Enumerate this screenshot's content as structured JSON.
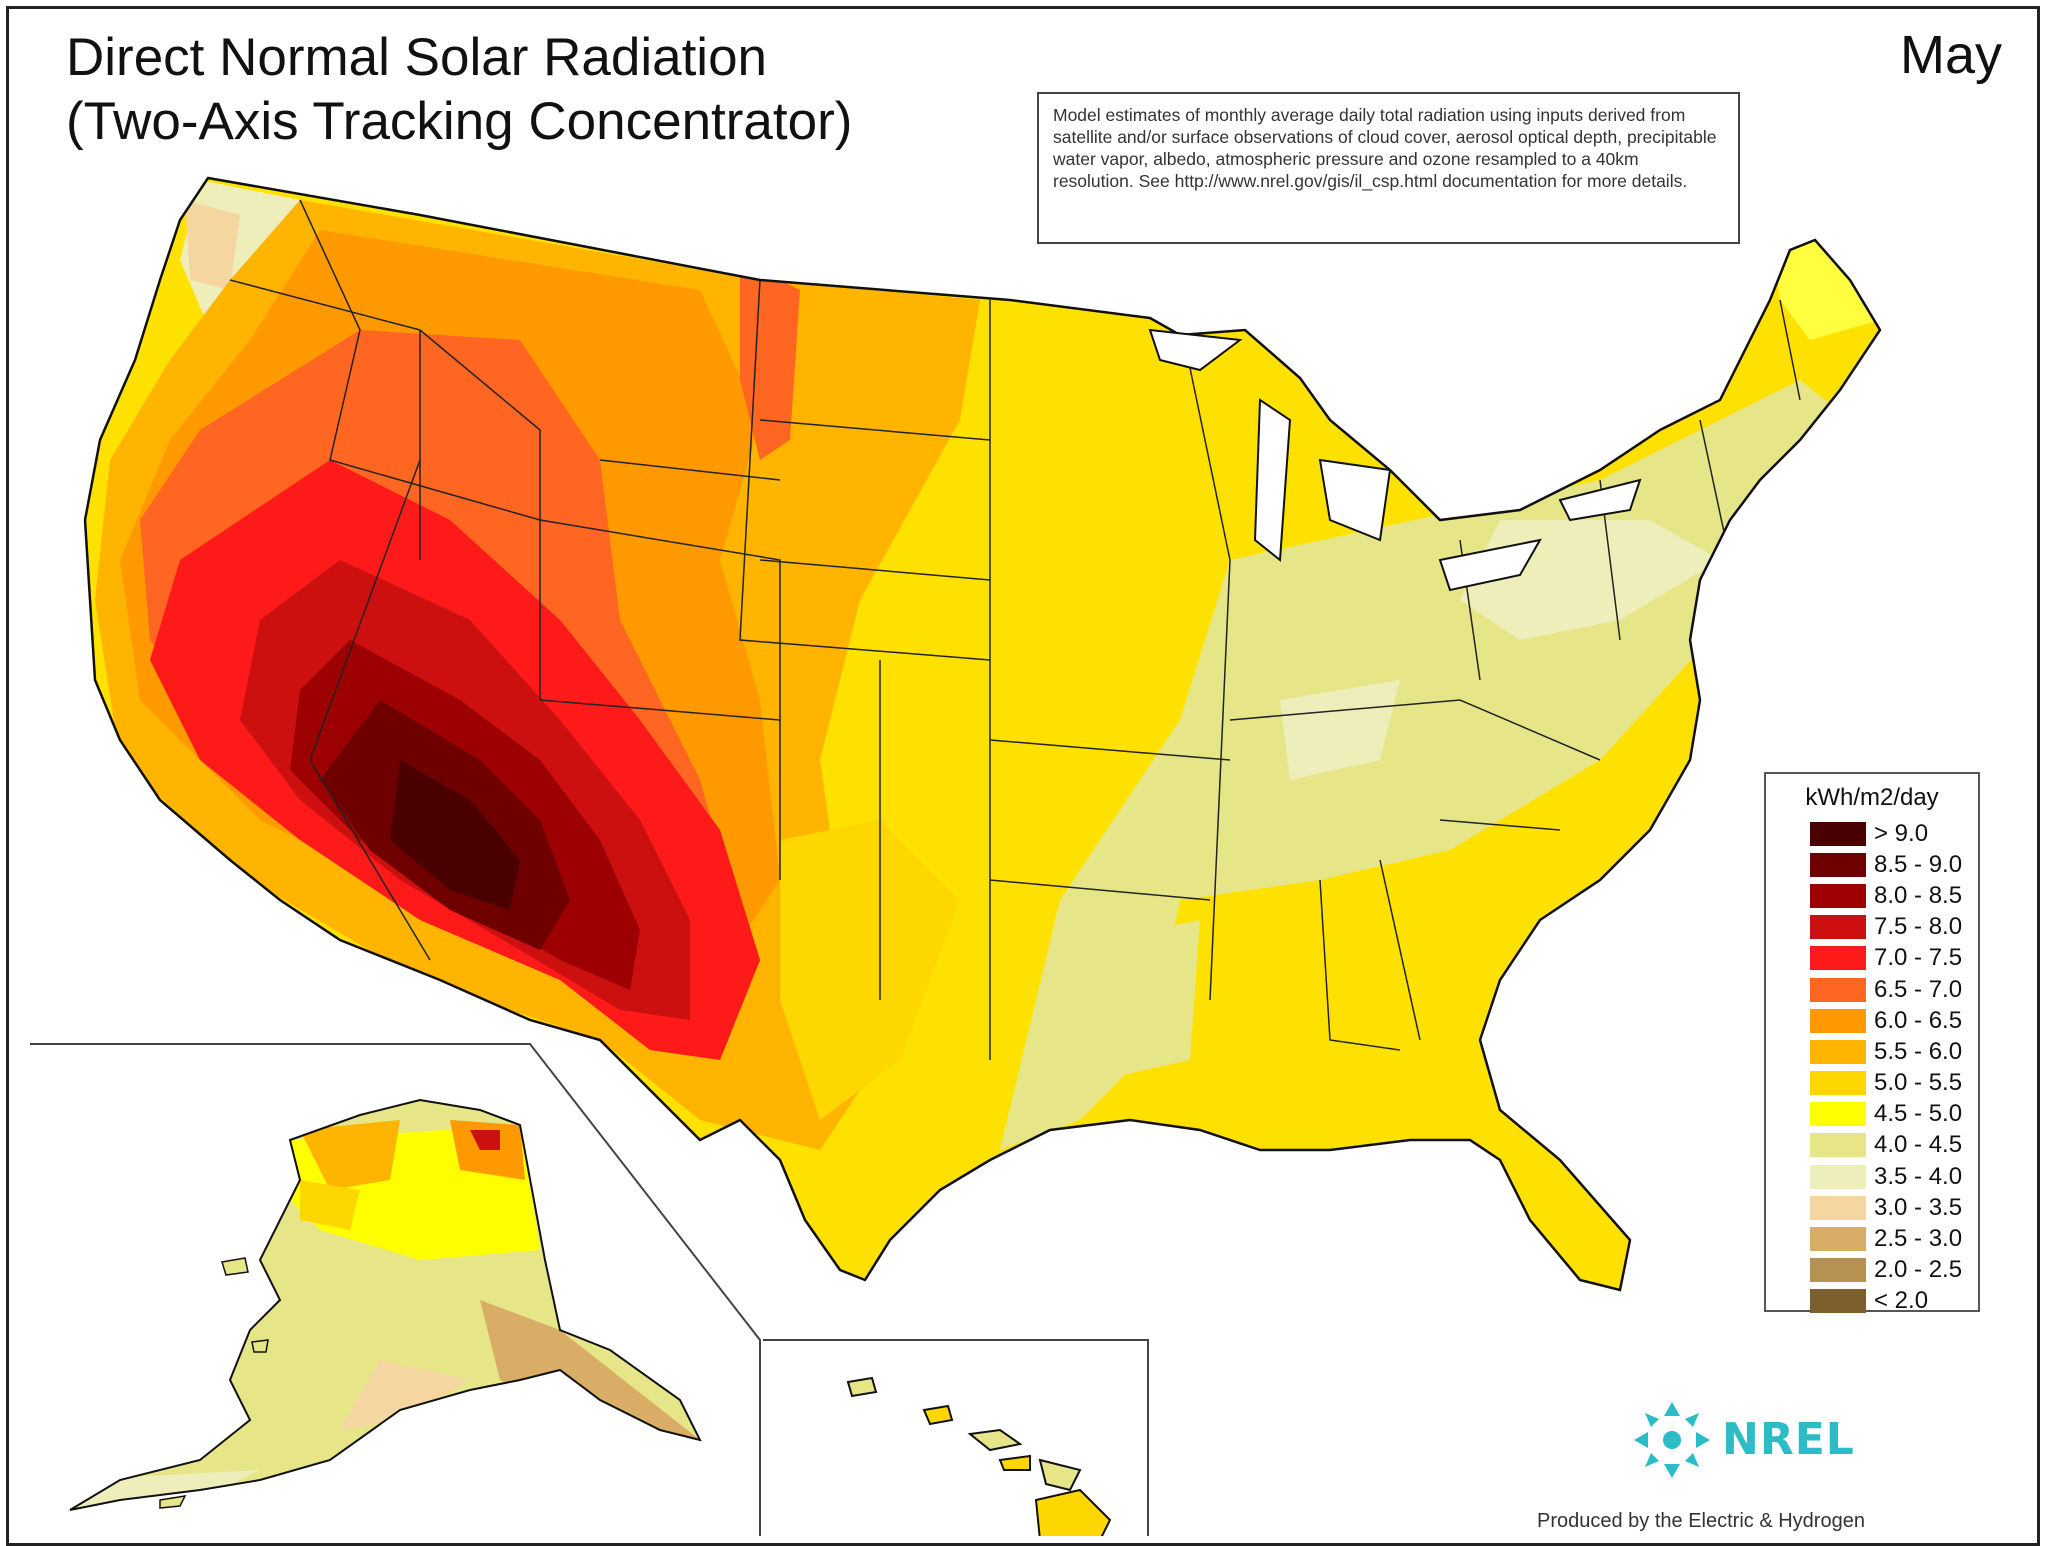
{
  "title": {
    "line1": "Direct Normal Solar Radiation",
    "line2": "(Two-Axis Tracking Concentrator)"
  },
  "month": "May",
  "notes": {
    "text": "Model estimates of monthly average daily total radiation using inputs derived from satellite and/or surface observations of cloud cover, aerosol optical depth, precipitable water vapor, albedo, atmospheric pressure and ozone resampled to a 40km resolution. See http://www.nrel.gov/gis/il_csp.html documentation for more details."
  },
  "legend": {
    "title": "kWh/m2/day",
    "items": [
      {
        "label": "> 9.0",
        "color": "#4a0000"
      },
      {
        "label": "8.5 - 9.0",
        "color": "#6e0000"
      },
      {
        "label": "8.0 - 8.5",
        "color": "#9c0000"
      },
      {
        "label": "7.5 - 8.0",
        "color": "#cc1010"
      },
      {
        "label": "7.0 - 7.5",
        "color": "#ff1a1a"
      },
      {
        "label": "6.5 - 7.0",
        "color": "#ff6622"
      },
      {
        "label": "6.0 - 6.5",
        "color": "#ff9900"
      },
      {
        "label": "5.5 - 6.0",
        "color": "#ffb400"
      },
      {
        "label": "5.0 - 5.5",
        "color": "#ffd700"
      },
      {
        "label": "4.5 - 5.0",
        "color": "#ffff00"
      },
      {
        "label": "4.0 - 4.5",
        "color": "#e6e689"
      },
      {
        "label": "3.5 - 4.0",
        "color": "#eeeebb"
      },
      {
        "label": "3.0 - 3.5",
        "color": "#f6d6a0"
      },
      {
        "label": "2.5 - 3.0",
        "color": "#d9ad66"
      },
      {
        "label": "2.0 - 2.5",
        "color": "#b79150"
      },
      {
        "label": "< 2.0",
        "color": "#7c5f2c"
      }
    ]
  },
  "logo": {
    "text": "NREL",
    "color": "#2bbcc6",
    "icon": "nrel-sunburst-icon"
  },
  "credit": "Produced by the Electric & Hydrogen"
}
